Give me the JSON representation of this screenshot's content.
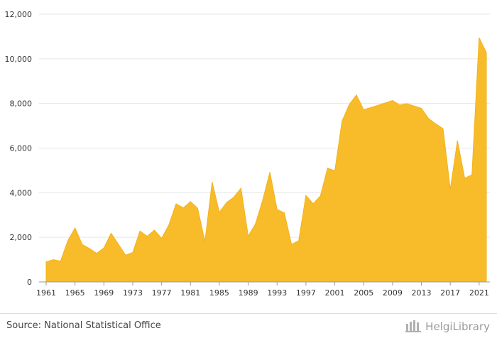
{
  "chart_data": {
    "type": "area",
    "title": "",
    "xlabel": "",
    "ylabel": "",
    "color": "#f8bc2a",
    "ylim": [
      0,
      12000
    ],
    "yticks": [
      0,
      2000,
      4000,
      6000,
      8000,
      10000,
      12000
    ],
    "ytick_labels": [
      "0",
      "2,000",
      "4,000",
      "6,000",
      "8,000",
      "10,000",
      "12,000"
    ],
    "xticks": [
      1961,
      1965,
      1969,
      1973,
      1977,
      1981,
      1985,
      1989,
      1993,
      1997,
      2001,
      2005,
      2009,
      2013,
      2017,
      2021
    ],
    "grid": true,
    "x": [
      1961,
      1962,
      1963,
      1964,
      1965,
      1966,
      1967,
      1968,
      1969,
      1970,
      1971,
      1972,
      1973,
      1974,
      1975,
      1976,
      1977,
      1978,
      1979,
      1980,
      1981,
      1982,
      1983,
      1984,
      1985,
      1986,
      1987,
      1988,
      1989,
      1990,
      1991,
      1992,
      1993,
      1994,
      1995,
      1996,
      1997,
      1998,
      1999,
      2000,
      2001,
      2002,
      2003,
      2004,
      2005,
      2006,
      2007,
      2008,
      2009,
      2010,
      2011,
      2012,
      2013,
      2014,
      2015,
      2016,
      2017,
      2018,
      2019,
      2020,
      2021,
      2022
    ],
    "values": [
      900,
      1000,
      930,
      1850,
      2420,
      1680,
      1500,
      1280,
      1520,
      2180,
      1700,
      1200,
      1320,
      2280,
      2050,
      2320,
      1950,
      2550,
      3500,
      3320,
      3600,
      3300,
      1800,
      4480,
      3120,
      3560,
      3800,
      4200,
      2050,
      2600,
      3650,
      4920,
      3250,
      3100,
      1680,
      1850,
      3880,
      3500,
      3850,
      5100,
      4980,
      7200,
      7950,
      8380,
      7720,
      7820,
      7920,
      8020,
      8130,
      7930,
      7990,
      7880,
      7780,
      7320,
      7080,
      6870,
      4150,
      6330,
      4650,
      4800,
      10950,
      10280
    ]
  },
  "footer": {
    "source": "Source: National Statistical Office",
    "brand": "HelgiLibrary",
    "brand_logo": "helgilibrary-logo-icon"
  }
}
